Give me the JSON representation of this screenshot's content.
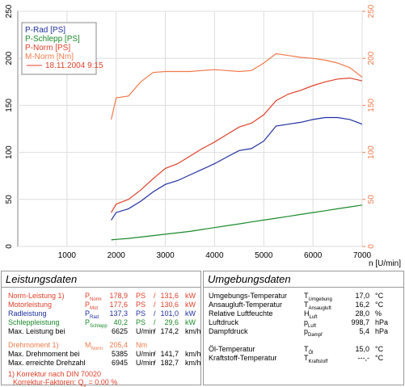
{
  "chart_data": {
    "type": "line",
    "x_label": "n [U/min]",
    "x": [
      1900,
      2000,
      2250,
      2500,
      2750,
      3000,
      3250,
      3500,
      3750,
      4000,
      4250,
      4500,
      4750,
      5000,
      5250,
      5500,
      5750,
      6000,
      6250,
      6500,
      6750,
      7000
    ],
    "series": [
      {
        "name": "P-Rad [PS]",
        "color": "#1f2fa0",
        "values": [
          28,
          36,
          40,
          48,
          58,
          66,
          70,
          76,
          82,
          88,
          95,
          102,
          104,
          112,
          128,
          130,
          132,
          135,
          137,
          137,
          135,
          130
        ]
      },
      {
        "name": "P-Schlepp [PS]",
        "color": "#1a8a2a",
        "values": [
          7,
          7.5,
          8.5,
          10,
          11.5,
          13,
          14.5,
          16,
          18,
          20,
          22,
          24,
          26,
          28,
          30,
          32,
          34,
          36,
          38,
          40,
          42,
          44
        ]
      },
      {
        "name": "P-Norm [PS]",
        "color": "#e0402a",
        "values": [
          36,
          45,
          50,
          60,
          72,
          83,
          88,
          96,
          104,
          111,
          119,
          127,
          131,
          140,
          155,
          162,
          166,
          171,
          175,
          178,
          179,
          176
        ]
      },
      {
        "name": "M-Norm [Nm]",
        "color": "#f07a4a",
        "axis": "y2",
        "values": [
          135,
          158,
          160,
          175,
          185,
          186,
          186,
          186,
          187,
          188,
          187,
          186,
          187,
          195,
          205,
          203,
          201,
          200,
          198,
          195,
          190,
          180
        ]
      }
    ],
    "annotation": "18.11.2004 9:15",
    "xlim": [
      0,
      7000
    ],
    "xticks": [
      1000,
      2000,
      3000,
      4000,
      5000,
      6000,
      7000
    ],
    "ylim": [
      0,
      250
    ],
    "yticks": [
      0,
      50,
      100,
      150,
      200,
      250
    ],
    "y2lim": [
      0,
      250
    ],
    "y2ticks": [
      0,
      50,
      100,
      150,
      200,
      250
    ],
    "y2color": "#f07a4a",
    "grid": true
  },
  "left_panel": {
    "title": "Leistungsdaten",
    "rows": [
      {
        "label": "Norm-Leistung 1)",
        "sym": "P",
        "sub": "Norm",
        "v1": "178,9",
        "u1": "PS",
        "sep": "/",
        "v2": "131,6",
        "u2": "kW",
        "color": "#e0402a"
      },
      {
        "label": "Motorleistung",
        "sym": "P",
        "sub": "Mot",
        "v1": "177,6",
        "u1": "PS",
        "sep": "/",
        "v2": "130,6",
        "u2": "kW",
        "color": "#e0402a"
      },
      {
        "label": "Radleistung",
        "sym": "P",
        "sub": "Rad",
        "v1": "137,3",
        "u1": "PS",
        "sep": "/",
        "v2": "101,0",
        "u2": "kW",
        "color": "#1f2fa0"
      },
      {
        "label": "Schleppleistung",
        "sym": "P",
        "sub": "Schlepp",
        "v1": "40,2",
        "u1": "PS",
        "sep": "/",
        "v2": "29,6",
        "u2": "kW",
        "color": "#1a8a2a"
      },
      {
        "label": "Max. Leistung bei",
        "v1": "6625",
        "u1": "U/min",
        "sep": "/",
        "v2": "174,2",
        "u2": "km/h",
        "color": "#000000"
      },
      {
        "label": "Drehmoment 1)",
        "sym": "M",
        "sub": "Norm",
        "v1": "205,4",
        "u1": "Nm",
        "color": "#f07a4a"
      },
      {
        "label": "Max. Drehmoment bei",
        "v1": "5385",
        "u1": "U/min",
        "sep": "/",
        "v2": "141,7",
        "u2": "km/h",
        "color": "#000000"
      },
      {
        "label": "Max. erreichte Drehzahl",
        "v1": "6945",
        "u1": "U/min",
        "sep": "/",
        "v2": "182,7",
        "u2": "km/h",
        "color": "#000000"
      }
    ],
    "notes": [
      "1) Korrektur nach DIN 70020",
      "Korrektur-Faktoren: Q",
      "y",
      "=   0.00 %"
    ]
  },
  "right_panel": {
    "title": "Umgebungsdaten",
    "rows": [
      {
        "label": "Umgebungs-Temperatur",
        "sym": "T",
        "sub": "Umgebung",
        "value": "17,0",
        "unit": "°C"
      },
      {
        "label": "Ansaugluft-Temperatur",
        "sym": "T",
        "sub": "Ansaugluft",
        "value": "16,2",
        "unit": "°C"
      },
      {
        "label": "Relative Luftfeuchte",
        "sym": "H",
        "sub": "Luft",
        "value": "28,0",
        "unit": "%"
      },
      {
        "label": "Luftdruck",
        "sym": "p",
        "sub": "Luft",
        "value": "998,7",
        "unit": "hPa"
      },
      {
        "label": "Dampfdruck",
        "sym": "p",
        "sub": "Dampf",
        "value": "5,4",
        "unit": "hPa"
      },
      {
        "label": "Öl-Temperatur",
        "sym": "T",
        "sub": "Öl",
        "value": "15,0",
        "unit": "°C"
      },
      {
        "label": "Kraftstoff-Temperatur",
        "sym": "T",
        "sub": "Kraftstoff",
        "value": "---,-",
        "unit": "°C"
      }
    ]
  }
}
